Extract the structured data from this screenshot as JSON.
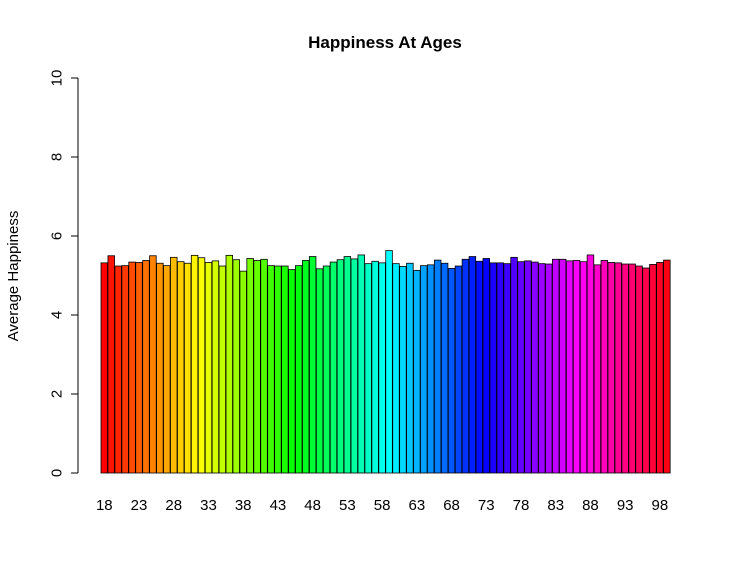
{
  "chart_data": {
    "type": "bar",
    "title": "Happiness At Ages",
    "xlabel": "",
    "ylabel": "Average Happiness",
    "ylim": [
      0,
      10
    ],
    "y_ticks": [
      "0",
      "2",
      "4",
      "6",
      "8",
      "10"
    ],
    "x_tick_labels": [
      "18",
      "23",
      "28",
      "33",
      "38",
      "43",
      "48",
      "53",
      "58",
      "63",
      "68",
      "73",
      "78",
      "83",
      "88",
      "93",
      "98"
    ],
    "bar_colors": "rainbow (red → orange → yellow → green → cyan → blue → violet → magenta → red)",
    "categories": [
      18,
      19,
      20,
      21,
      22,
      23,
      24,
      25,
      26,
      27,
      28,
      29,
      30,
      31,
      32,
      33,
      34,
      35,
      36,
      37,
      38,
      39,
      40,
      41,
      42,
      43,
      44,
      45,
      46,
      47,
      48,
      49,
      50,
      51,
      52,
      53,
      54,
      55,
      56,
      57,
      58,
      59,
      60,
      61,
      62,
      63,
      64,
      65,
      66,
      67,
      68,
      69,
      70,
      71,
      72,
      73,
      74,
      75,
      76,
      77,
      78,
      79,
      80,
      81,
      82,
      83,
      84,
      85,
      86,
      87,
      88,
      89,
      90,
      91,
      92,
      93,
      94,
      95,
      96,
      97,
      98,
      99
    ],
    "values": [
      5.32,
      5.5,
      5.24,
      5.25,
      5.34,
      5.33,
      5.38,
      5.5,
      5.31,
      5.25,
      5.46,
      5.35,
      5.31,
      5.51,
      5.45,
      5.33,
      5.37,
      5.24,
      5.51,
      5.4,
      5.11,
      5.43,
      5.38,
      5.41,
      5.25,
      5.24,
      5.24,
      5.15,
      5.25,
      5.38,
      5.48,
      5.17,
      5.24,
      5.34,
      5.4,
      5.48,
      5.42,
      5.52,
      5.3,
      5.36,
      5.32,
      5.63,
      5.3,
      5.23,
      5.31,
      5.13,
      5.25,
      5.27,
      5.39,
      5.31,
      5.18,
      5.24,
      5.41,
      5.48,
      5.36,
      5.43,
      5.32,
      5.32,
      5.3,
      5.46,
      5.35,
      5.37,
      5.34,
      5.3,
      5.29,
      5.41,
      5.41,
      5.37,
      5.38,
      5.35,
      5.52,
      5.27,
      5.38,
      5.33,
      5.32,
      5.29,
      5.29,
      5.24,
      5.19,
      5.28,
      5.33,
      5.39
    ]
  }
}
